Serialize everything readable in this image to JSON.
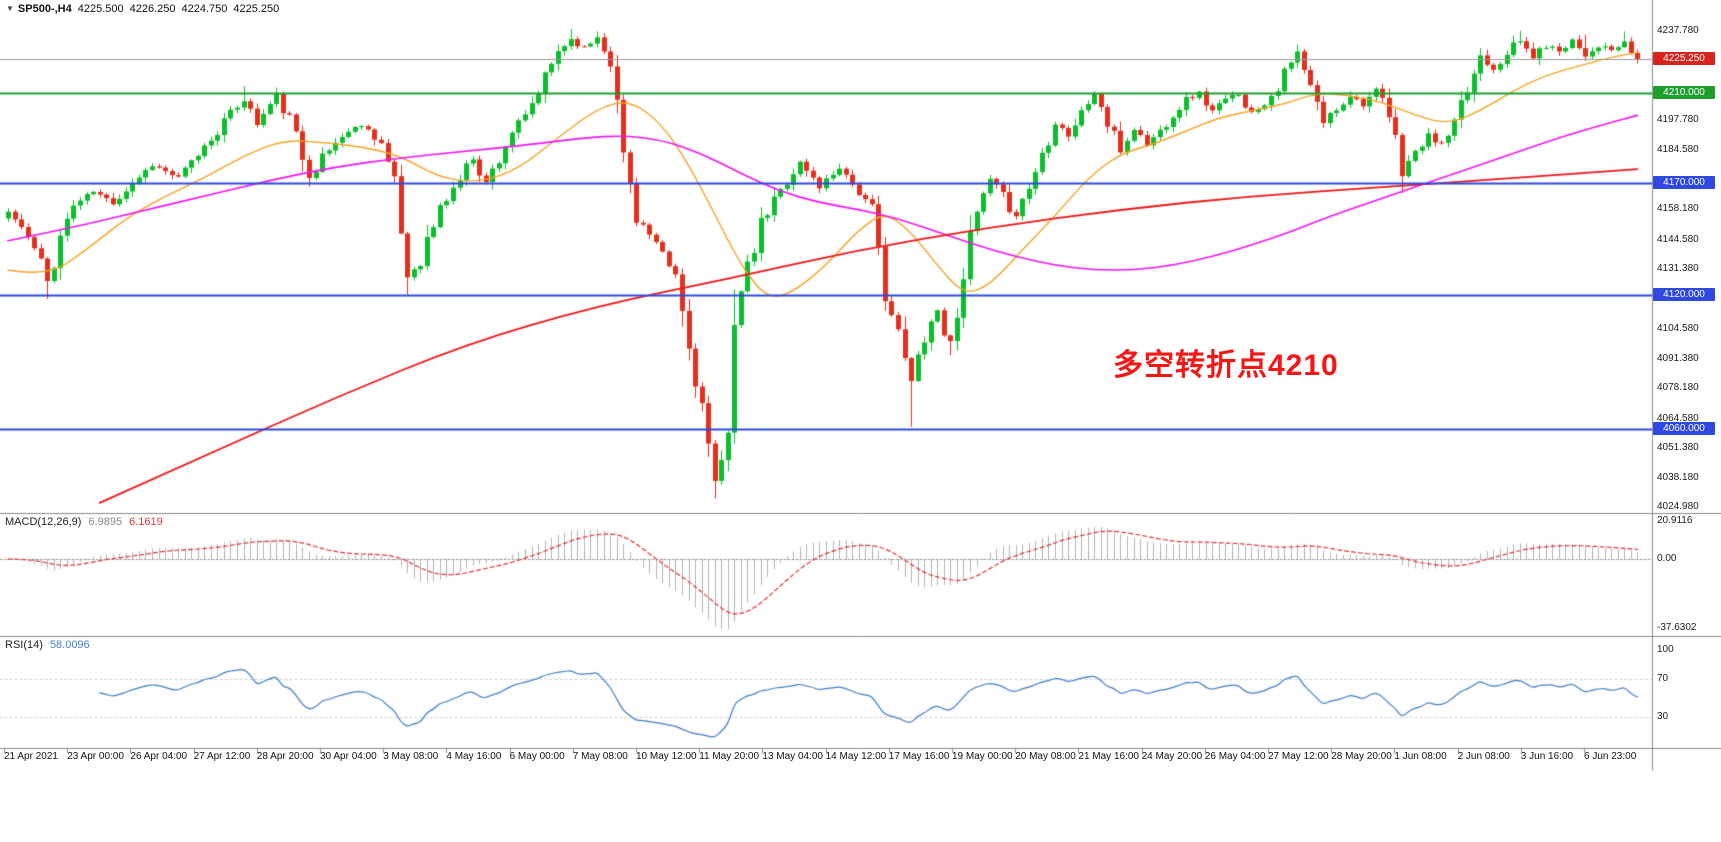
{
  "header": {
    "collapse_icon": "▼",
    "symbol": "SP500-,H4",
    "open": "4225.500",
    "high": "4226.250",
    "low": "4224.750",
    "close": "4225.250"
  },
  "chart_data": {
    "type": "candlestick",
    "symbol": "SP500-",
    "timeframe": "H4",
    "ylim": [
      4022.5,
      4251.5
    ],
    "time_labels": [
      "21 Apr 2021",
      "23 Apr 00:00",
      "26 Apr 04:00",
      "27 Apr 12:00",
      "28 Apr 20:00",
      "30 Apr 04:00",
      "3 May 08:00",
      "4 May 16:00",
      "6 May 00:00",
      "7 May 08:00",
      "10 May 12:00",
      "11 May 20:00",
      "13 May 04:00",
      "14 May 12:00",
      "17 May 16:00",
      "19 May 00:00",
      "20 May 08:00",
      "21 May 16:00",
      "24 May 20:00",
      "26 May 04:00",
      "27 May 12:00",
      "28 May 20:00",
      "1 Jun 08:00",
      "2 Jun 08:00",
      "3 Jun 16:00",
      "6 Jun 23:00"
    ],
    "price_axis_labels": [
      "4237.780",
      "4197.780",
      "4184.580",
      "4158.180",
      "4144.580",
      "4131.380",
      "4104.580",
      "4091.380",
      "4078.180",
      "4064.580",
      "4051.380",
      "4038.180",
      "4024.980"
    ],
    "levels": [
      {
        "text": "4225.250",
        "price": 4225.25,
        "badge_color": "#d8241e",
        "line_color": "#9a9a9a",
        "line_width": 1
      },
      {
        "text": "4210.000",
        "price": 4210.0,
        "badge_color": "#1f9e2e",
        "line_color": "#1f9e2e",
        "line_width": 2
      },
      {
        "text": "4170.000",
        "price": 4170.0,
        "badge_color": "#2e48e0",
        "line_color": "#2e48e0",
        "line_width": 2
      },
      {
        "text": "4120.000",
        "price": 4120.0,
        "badge_color": "#2e48e0",
        "line_color": "#2e48e0",
        "line_width": 2
      },
      {
        "text": "4060.000",
        "price": 4060.0,
        "badge_color": "#2e48e0",
        "line_color": "#2e48e0",
        "line_width": 2
      }
    ],
    "candles": {
      "count": 250,
      "seed": 11,
      "up_color": "#0bbf2c",
      "down_color": "#e42f1e",
      "last_close": 4225.25,
      "close_waypoints": [
        [
          0,
          4157
        ],
        [
          2,
          4150
        ],
        [
          4,
          4140
        ],
        [
          6,
          4126
        ],
        [
          8,
          4146
        ],
        [
          10,
          4160
        ],
        [
          13,
          4166
        ],
        [
          16,
          4161
        ],
        [
          19,
          4170
        ],
        [
          22,
          4178
        ],
        [
          26,
          4172
        ],
        [
          30,
          4186
        ],
        [
          34,
          4201
        ],
        [
          36,
          4207
        ],
        [
          38,
          4196
        ],
        [
          41,
          4209
        ],
        [
          43,
          4198
        ],
        [
          46,
          4173
        ],
        [
          48,
          4181
        ],
        [
          51,
          4191
        ],
        [
          54,
          4196
        ],
        [
          57,
          4188
        ],
        [
          59,
          4168
        ],
        [
          61,
          4128
        ],
        [
          63,
          4136
        ],
        [
          66,
          4158
        ],
        [
          69,
          4172
        ],
        [
          71,
          4181
        ],
        [
          73,
          4170
        ],
        [
          75,
          4181
        ],
        [
          77,
          4193
        ],
        [
          79,
          4199
        ],
        [
          82,
          4216
        ],
        [
          84,
          4229
        ],
        [
          86,
          4234
        ],
        [
          88,
          4230
        ],
        [
          90,
          4235
        ],
        [
          92,
          4226
        ],
        [
          94,
          4183
        ],
        [
          96,
          4156
        ],
        [
          98,
          4146
        ],
        [
          100,
          4136
        ],
        [
          102,
          4128
        ],
        [
          104,
          4096
        ],
        [
          106,
          4070
        ],
        [
          108,
          4034
        ],
        [
          109,
          4044
        ],
        [
          110,
          4062
        ],
        [
          111,
          4110
        ],
        [
          113,
          4130
        ],
        [
          115,
          4150
        ],
        [
          117,
          4162
        ],
        [
          119,
          4171
        ],
        [
          121,
          4179
        ],
        [
          124,
          4168
        ],
        [
          127,
          4177
        ],
        [
          130,
          4166
        ],
        [
          132,
          4156
        ],
        [
          134,
          4122
        ],
        [
          136,
          4101
        ],
        [
          138,
          4081
        ],
        [
          140,
          4103
        ],
        [
          142,
          4113
        ],
        [
          144,
          4097
        ],
        [
          146,
          4131
        ],
        [
          148,
          4156
        ],
        [
          150,
          4171
        ],
        [
          152,
          4163
        ],
        [
          154,
          4156
        ],
        [
          156,
          4168
        ],
        [
          158,
          4183
        ],
        [
          160,
          4198
        ],
        [
          162,
          4191
        ],
        [
          164,
          4201
        ],
        [
          166,
          4210
        ],
        [
          168,
          4196
        ],
        [
          170,
          4184
        ],
        [
          172,
          4194
        ],
        [
          174,
          4187
        ],
        [
          176,
          4193
        ],
        [
          178,
          4201
        ],
        [
          180,
          4207
        ],
        [
          182,
          4210
        ],
        [
          184,
          4202
        ],
        [
          186,
          4207
        ],
        [
          188,
          4210
        ],
        [
          190,
          4201
        ],
        [
          192,
          4206
        ],
        [
          194,
          4213
        ],
        [
          196,
          4223
        ],
        [
          197,
          4228
        ],
        [
          199,
          4211
        ],
        [
          201,
          4197
        ],
        [
          203,
          4203
        ],
        [
          205,
          4209
        ],
        [
          207,
          4205
        ],
        [
          209,
          4211
        ],
        [
          211,
          4199
        ],
        [
          213,
          4176
        ],
        [
          215,
          4183
        ],
        [
          217,
          4191
        ],
        [
          219,
          4187
        ],
        [
          221,
          4195
        ],
        [
          223,
          4211
        ],
        [
          225,
          4227
        ],
        [
          227,
          4221
        ],
        [
          229,
          4229
        ],
        [
          231,
          4233
        ],
        [
          233,
          4226
        ],
        [
          235,
          4231
        ],
        [
          237,
          4229
        ],
        [
          239,
          4234
        ],
        [
          241,
          4227
        ],
        [
          243,
          4231
        ],
        [
          245,
          4229
        ],
        [
          247,
          4232
        ],
        [
          249,
          4225.25
        ]
      ],
      "wick_lows": [
        [
          6,
          4118
        ],
        [
          61,
          4120
        ],
        [
          108,
          4029
        ],
        [
          138,
          4061
        ],
        [
          144,
          4093
        ],
        [
          213,
          4171
        ]
      ],
      "wick_highs": [
        [
          36,
          4213
        ],
        [
          86,
          4238.5
        ],
        [
          90,
          4237.5
        ],
        [
          197,
          4230
        ],
        [
          231,
          4237.8
        ],
        [
          241,
          4236
        ],
        [
          247,
          4237.5
        ]
      ]
    },
    "moving_averages": [
      {
        "name": "fast-ma-orange",
        "color": "#f7a325",
        "width": 1.4,
        "points": [
          [
            0,
            4131
          ],
          [
            6,
            4128
          ],
          [
            12,
            4140
          ],
          [
            18,
            4154
          ],
          [
            24,
            4164
          ],
          [
            30,
            4172
          ],
          [
            36,
            4182
          ],
          [
            42,
            4189
          ],
          [
            48,
            4188
          ],
          [
            54,
            4186
          ],
          [
            60,
            4182
          ],
          [
            66,
            4172
          ],
          [
            72,
            4170
          ],
          [
            78,
            4176
          ],
          [
            84,
            4190
          ],
          [
            90,
            4203
          ],
          [
            95,
            4207
          ],
          [
            100,
            4196
          ],
          [
            104,
            4178
          ],
          [
            108,
            4156
          ],
          [
            112,
            4133
          ],
          [
            116,
            4118
          ],
          [
            120,
            4121
          ],
          [
            125,
            4133
          ],
          [
            130,
            4149
          ],
          [
            134,
            4157
          ],
          [
            138,
            4148
          ],
          [
            142,
            4133
          ],
          [
            146,
            4120
          ],
          [
            150,
            4124
          ],
          [
            155,
            4140
          ],
          [
            160,
            4155
          ],
          [
            165,
            4172
          ],
          [
            170,
            4183
          ],
          [
            175,
            4187
          ],
          [
            180,
            4193
          ],
          [
            185,
            4199
          ],
          [
            190,
            4202
          ],
          [
            195,
            4205
          ],
          [
            200,
            4210
          ],
          [
            205,
            4209
          ],
          [
            210,
            4206
          ],
          [
            215,
            4200
          ],
          [
            220,
            4196
          ],
          [
            225,
            4202
          ],
          [
            230,
            4211
          ],
          [
            235,
            4218
          ],
          [
            240,
            4222
          ],
          [
            245,
            4226
          ],
          [
            249,
            4228
          ]
        ]
      },
      {
        "name": "mid-ma-magenta",
        "color": "#f316f3",
        "width": 1.6,
        "points": [
          [
            0,
            4144
          ],
          [
            10,
            4150
          ],
          [
            20,
            4157
          ],
          [
            30,
            4164
          ],
          [
            40,
            4171
          ],
          [
            50,
            4177
          ],
          [
            60,
            4181
          ],
          [
            70,
            4184
          ],
          [
            80,
            4187
          ],
          [
            88,
            4190
          ],
          [
            94,
            4191
          ],
          [
            100,
            4189
          ],
          [
            106,
            4183
          ],
          [
            112,
            4174
          ],
          [
            118,
            4166
          ],
          [
            124,
            4161
          ],
          [
            130,
            4158
          ],
          [
            136,
            4154
          ],
          [
            142,
            4148
          ],
          [
            148,
            4142
          ],
          [
            154,
            4137
          ],
          [
            160,
            4133
          ],
          [
            166,
            4131
          ],
          [
            172,
            4131
          ],
          [
            178,
            4133
          ],
          [
            184,
            4137
          ],
          [
            190,
            4142
          ],
          [
            196,
            4148
          ],
          [
            202,
            4155
          ],
          [
            208,
            4161
          ],
          [
            214,
            4167
          ],
          [
            220,
            4173
          ],
          [
            226,
            4179
          ],
          [
            232,
            4185
          ],
          [
            238,
            4191
          ],
          [
            244,
            4196
          ],
          [
            249,
            4200
          ]
        ]
      },
      {
        "name": "slow-ma-red",
        "color": "#f01616",
        "width": 1.8,
        "points": [
          [
            14,
            4027
          ],
          [
            30,
            4048
          ],
          [
            50,
            4074
          ],
          [
            70,
            4098
          ],
          [
            90,
            4115
          ],
          [
            110,
            4127
          ],
          [
            130,
            4140
          ],
          [
            150,
            4150
          ],
          [
            170,
            4158
          ],
          [
            190,
            4164
          ],
          [
            210,
            4168
          ],
          [
            230,
            4172
          ],
          [
            249,
            4176
          ]
        ]
      }
    ],
    "annotation": {
      "text": "多空转折点4210",
      "color": "#f51616"
    },
    "macd": {
      "label": "MACD(12,26,9)",
      "value_main": "6.9895",
      "value_signal": "6.1619",
      "fast": 12,
      "slow": 26,
      "signal": 9,
      "range": [
        -40,
        22.5
      ],
      "histogram_color": "#b3b3b3",
      "signal_color": "#e03636",
      "axis_labels": [
        {
          "text": "20.9116",
          "value": 20.9116
        },
        {
          "text": "0.00",
          "value": 0
        },
        {
          "text": "-37.6302",
          "value": -37.6302
        }
      ]
    },
    "rsi": {
      "label": "RSI(14)",
      "value": "58.0096",
      "period": 14,
      "range": [
        0,
        100
      ],
      "levels": [
        70,
        30
      ],
      "line_color": "#3f7fca",
      "axis_labels": [
        {
          "text": "100",
          "value": 100
        },
        {
          "text": "70",
          "value": 70
        },
        {
          "text": "30",
          "value": 30
        }
      ]
    }
  }
}
